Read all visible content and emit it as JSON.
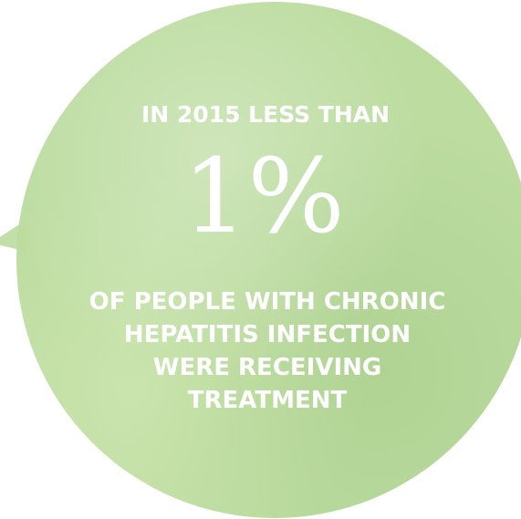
{
  "stat": {
    "lead": "IN 2015 LESS THAN",
    "figure": "1%",
    "tail_lines": [
      "OF PEOPLE WITH CHRONIC",
      "HEPATITIS INFECTION",
      "WERE RECEIVING",
      "TREATMENT"
    ]
  },
  "colors": {
    "circle": "#bcdca0",
    "text": "#ffffff",
    "background": "#ffffff"
  }
}
